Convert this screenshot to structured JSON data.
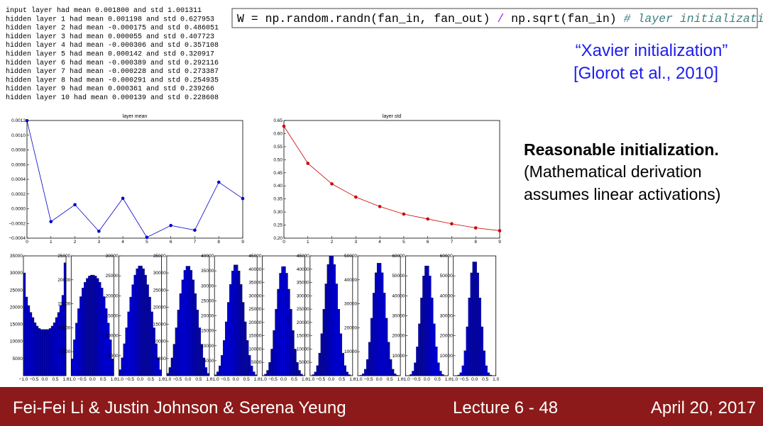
{
  "log": [
    "input layer had mean 0.001800 and std 1.001311",
    "hidden layer 1 had mean 0.001198 and std 0.627953",
    "hidden layer 2 had mean -0.000175 and std 0.486051",
    "hidden layer 3 had mean 0.000055 and std 0.407723",
    "hidden layer 4 had mean -0.000306 and std 0.357108",
    "hidden layer 5 had mean 0.000142 and std 0.320917",
    "hidden layer 6 had mean -0.000389 and std 0.292116",
    "hidden layer 7 had mean -0.000228 and std 0.273387",
    "hidden layer 8 had mean -0.000291 and std 0.254935",
    "hidden layer 9 had mean 0.000361 and std 0.239266",
    "hidden layer 10 had mean 0.000139 and std 0.228608"
  ],
  "code": [
    "W = np.random.randn(fan_in, fan_out) ",
    "/",
    " np.sqrt(fan_in) ",
    "# layer initialization"
  ],
  "citation": [
    "“Xavier initialization”",
    "[Glorot et al., 2010]"
  ],
  "note": {
    "heading": "Reasonable initialization.",
    "lines": [
      "(Mathematical derivation",
      "assumes linear activations)"
    ]
  },
  "footer": {
    "authors": "Fei-Fei Li & Justin Johnson & Serena Yeung",
    "lecture": "Lecture 6 - 48",
    "date": "April 20, 2017"
  },
  "chart_data": [
    {
      "type": "line",
      "title": "layer mean",
      "color": "#0000cc",
      "x": [
        0,
        1,
        2,
        3,
        4,
        5,
        6,
        7,
        8,
        9
      ],
      "values": [
        0.001198,
        -0.000175,
        5.5e-05,
        -0.000306,
        0.000142,
        -0.000389,
        -0.000228,
        -0.000291,
        0.000361,
        0.000139
      ],
      "xlim": [
        0,
        9
      ],
      "xticks": [
        0,
        1,
        2,
        3,
        4,
        5,
        6,
        7,
        8,
        9
      ],
      "ylim": [
        -0.0004,
        0.0012
      ],
      "yticks": [
        {
          "value": -0.0004,
          "label": "−0.0004"
        },
        {
          "value": -0.0002,
          "label": "−0.0002"
        },
        {
          "value": 0,
          "label": "0.0000"
        },
        {
          "value": 0.0002,
          "label": "0.0002"
        },
        {
          "value": 0.0004,
          "label": "0.0004"
        },
        {
          "value": 0.0006,
          "label": "0.0006"
        },
        {
          "value": 0.0008,
          "label": "0.0008"
        },
        {
          "value": 0.001,
          "label": "0.0010"
        },
        {
          "value": 0.0012,
          "label": "0.0012"
        }
      ]
    },
    {
      "type": "line",
      "title": "layer std",
      "color": "#cc0000",
      "x": [
        0,
        1,
        2,
        3,
        4,
        5,
        6,
        7,
        8,
        9
      ],
      "values": [
        0.627953,
        0.486051,
        0.407723,
        0.357108,
        0.320917,
        0.292116,
        0.273387,
        0.254935,
        0.239266,
        0.228608
      ],
      "xlim": [
        0,
        9
      ],
      "xticks": [
        0,
        1,
        2,
        3,
        4,
        5,
        6,
        7,
        8,
        9
      ],
      "ylim": [
        0.2,
        0.65
      ],
      "yticks": [
        {
          "value": 0.2,
          "label": "0.20"
        },
        {
          "value": 0.25,
          "label": "0.25"
        },
        {
          "value": 0.3,
          "label": "0.30"
        },
        {
          "value": 0.35,
          "label": "0.35"
        },
        {
          "value": 0.4,
          "label": "0.40"
        },
        {
          "value": 0.45,
          "label": "0.45"
        },
        {
          "value": 0.5,
          "label": "0.50"
        },
        {
          "value": 0.55,
          "label": "0.55"
        },
        {
          "value": 0.6,
          "label": "0.60"
        },
        {
          "value": 0.65,
          "label": "0.65"
        }
      ]
    },
    {
      "type": "histogram",
      "color": "#0000cc",
      "bins": [
        -1,
        -0.9,
        -0.8,
        -0.7,
        -0.6,
        -0.5,
        -0.4,
        -0.3,
        -0.2,
        -0.1,
        0,
        0.1,
        0.2,
        0.3,
        0.4,
        0.5,
        0.6,
        0.7,
        0.8,
        0.9,
        1
      ],
      "xlim": [
        -1,
        1
      ],
      "xticks": [
        {
          "value": -1,
          "label": "−1.0"
        },
        {
          "value": -0.5,
          "label": "−0.5"
        },
        {
          "value": 0,
          "label": "0.0"
        },
        {
          "value": 0.5,
          "label": "0.5"
        },
        {
          "value": 1,
          "label": "1.0"
        }
      ],
      "panels": [
        {
          "ylim": [
            0,
            35000
          ],
          "yticks": [
            5000,
            10000,
            15000,
            20000,
            25000,
            30000,
            35000
          ],
          "counts": [
            30000,
            23000,
            20500,
            18500,
            17000,
            15500,
            14500,
            13800,
            13500,
            13500,
            13500,
            13500,
            13800,
            14500,
            15500,
            17000,
            18500,
            20500,
            23500,
            33000
          ]
        },
        {
          "ylim": [
            0,
            25000
          ],
          "yticks": [
            5000,
            10000,
            15000,
            20000,
            25000
          ],
          "counts": [
            3500,
            7500,
            11000,
            14000,
            16500,
            18300,
            19500,
            20300,
            20800,
            21000,
            21000,
            20800,
            20300,
            19500,
            18300,
            16500,
            14000,
            11000,
            7500,
            3500
          ]
        },
        {
          "ylim": [
            0,
            30000
          ],
          "yticks": [
            5000,
            10000,
            15000,
            20000,
            25000,
            30000
          ],
          "counts": [
            1500,
            4500,
            8000,
            12000,
            16000,
            19700,
            22800,
            25200,
            26800,
            27500,
            27500,
            26800,
            25200,
            22800,
            19700,
            16000,
            12000,
            8000,
            4500,
            1500
          ]
        },
        {
          "ylim": [
            0,
            35000
          ],
          "yticks": [
            5000,
            10000,
            15000,
            20000,
            25000,
            30000,
            35000
          ],
          "counts": [
            700,
            2400,
            5200,
            9200,
            14000,
            19200,
            24000,
            28000,
            30800,
            32000,
            32000,
            30800,
            28000,
            24000,
            19200,
            14000,
            9200,
            5200,
            2400,
            700
          ]
        },
        {
          "ylim": [
            0,
            40000
          ],
          "yticks": [
            5000,
            10000,
            15000,
            20000,
            25000,
            30000,
            35000,
            40000
          ],
          "counts": [
            300,
            1300,
            3300,
            6800,
            11800,
            18000,
            24500,
            30500,
            35000,
            37000,
            37000,
            35000,
            30500,
            24500,
            18000,
            11800,
            6800,
            3300,
            1300,
            300
          ]
        },
        {
          "ylim": [
            0,
            45000
          ],
          "yticks": [
            5000,
            10000,
            15000,
            20000,
            25000,
            30000,
            35000,
            40000,
            45000
          ],
          "counts": [
            100,
            600,
            2000,
            5000,
            10000,
            17000,
            25000,
            32500,
            38500,
            41000,
            41000,
            38500,
            32500,
            25000,
            17000,
            10000,
            5000,
            2000,
            600,
            100
          ]
        },
        {
          "ylim": [
            0,
            45000
          ],
          "yticks": [
            5000,
            10000,
            15000,
            20000,
            25000,
            30000,
            35000,
            40000,
            45000
          ],
          "counts": [
            50,
            400,
            1400,
            3800,
            8500,
            15800,
            25000,
            34500,
            41800,
            45000,
            45000,
            41800,
            34500,
            25000,
            15800,
            8500,
            3800,
            1400,
            400,
            50
          ]
        },
        {
          "ylim": [
            0,
            50000
          ],
          "yticks": [
            10000,
            20000,
            30000,
            40000,
            50000
          ],
          "counts": [
            20,
            200,
            800,
            2700,
            6800,
            14000,
            24000,
            34500,
            43000,
            47000,
            47000,
            43000,
            34500,
            24000,
            14000,
            6800,
            2700,
            800,
            200,
            20
          ]
        },
        {
          "ylim": [
            0,
            60000
          ],
          "yticks": [
            10000,
            20000,
            30000,
            40000,
            50000,
            60000
          ],
          "counts": [
            10,
            100,
            600,
            2300,
            6500,
            14500,
            26000,
            39000,
            50000,
            55000,
            55000,
            50000,
            39000,
            26000,
            14500,
            6500,
            2300,
            600,
            100,
            10
          ]
        },
        {
          "ylim": [
            0,
            60000
          ],
          "yticks": [
            10000,
            20000,
            30000,
            40000,
            50000,
            60000
          ],
          "counts": [
            5,
            50,
            350,
            1500,
            5000,
            12500,
            24500,
            39000,
            51500,
            57000,
            57000,
            51500,
            39000,
            24500,
            12500,
            5000,
            1500,
            350,
            50,
            5
          ]
        }
      ]
    }
  ]
}
